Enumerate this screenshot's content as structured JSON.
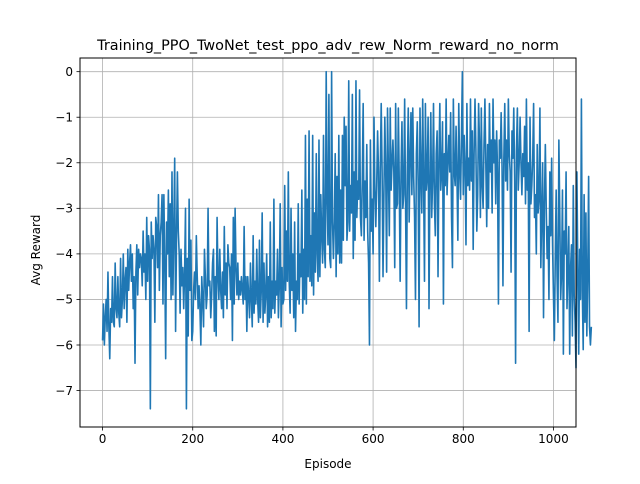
{
  "chart_data": {
    "type": "line",
    "title": "Training_PPO_TwoNet_test_ppo_adv_rew_Norm_reward_no_norm",
    "xlabel": "Episode",
    "ylabel": "Avg Reward",
    "xlim": [
      -50,
      1050
    ],
    "ylim": [
      -7.8,
      0.3
    ],
    "x_ticks": [
      0,
      200,
      400,
      600,
      800,
      1000
    ],
    "y_ticks": [
      0,
      -1,
      -2,
      -3,
      -4,
      -5,
      -6,
      -7
    ],
    "x_tick_labels": [
      "0",
      "200",
      "400",
      "600",
      "800",
      "1000"
    ],
    "y_tick_labels": [
      "0",
      "−1",
      "−2",
      "−3",
      "−4",
      "−5",
      "−6",
      "−7"
    ],
    "grid": true,
    "legend": "none",
    "series": [
      {
        "color": "#1f77b4",
        "x_start": 0,
        "x_step": 2,
        "values": [
          -5.9,
          -5.1,
          -6.0,
          -5.4,
          -5.0,
          -5.7,
          -4.4,
          -5.6,
          -6.3,
          -5.2,
          -5.5,
          -4.5,
          -5.5,
          -5.6,
          -4.2,
          -5.2,
          -5.4,
          -4.5,
          -5.3,
          -5.6,
          -4.1,
          -5.4,
          -5.0,
          -4.0,
          -5.2,
          -4.6,
          -4.3,
          -5.5,
          -3.9,
          -4.8,
          -4.2,
          -3.8,
          -4.6,
          -4.0,
          -5.2,
          -4.5,
          -6.4,
          -4.4,
          -3.8,
          -4.9,
          -3.9,
          -4.3,
          -4.0,
          -4.1,
          -4.7,
          -3.5,
          -4.4,
          -4.0,
          -5.0,
          -3.2,
          -4.6,
          -3.6,
          -3.9,
          -7.4,
          -3.3,
          -4.1,
          -3.6,
          -3.9,
          -5.5,
          -3.2,
          -3.4,
          -4.3,
          -2.7,
          -4.8,
          -3.6,
          -3.3,
          -2.7,
          -5.1,
          -2.7,
          -4.2,
          -6.3,
          -3.3,
          -4.0,
          -2.6,
          -4.5,
          -2.9,
          -5.0,
          -2.2,
          -4.9,
          -3.5,
          -1.9,
          -5.7,
          -3.7,
          -2.2,
          -3.5,
          -4.0,
          -5.3,
          -3.9,
          -4.7,
          -4.3,
          -5.2,
          -4.4,
          -3.0,
          -7.4,
          -4.1,
          -5.8,
          -2.8,
          -4.8,
          -3.7,
          -5.9,
          -5.7,
          -4.8,
          -4.4,
          -5.0,
          -3.6,
          -4.5,
          -5.2,
          -4.7,
          -5.2,
          -6.0,
          -4.5,
          -5.0,
          -5.6,
          -3.9,
          -4.5,
          -5.2,
          -4.9,
          -3.0,
          -4.7,
          -4.6,
          -5.4,
          -4.9,
          -4.2,
          -3.9,
          -5.7,
          -4.5,
          -5.8,
          -3.2,
          -4.5,
          -5.0,
          -3.9,
          -4.8,
          -5.2,
          -4.4,
          -5.4,
          -3.4,
          -4.9,
          -4.2,
          -5.2,
          -3.8,
          -4.2,
          -4.3,
          -5.0,
          -4.0,
          -5.9,
          -3.2,
          -5.1,
          -3.0,
          -4.3,
          -4.9,
          -4.2,
          -5.0,
          -4.6,
          -4.9,
          -4.5,
          -4.8,
          -5.1,
          -3.4,
          -5.0,
          -4.5,
          -5.7,
          -4.5,
          -4.9,
          -5.4,
          -4.2,
          -5.0,
          -5.6,
          -3.6,
          -5.3,
          -4.6,
          -5.1,
          -3.9,
          -5.0,
          -5.5,
          -3.7,
          -5.4,
          -4.8,
          -3.1,
          -5.5,
          -4.2,
          -5.3,
          -4.9,
          -4.0,
          -5.6,
          -4.5,
          -5.5,
          -3.3,
          -5.4,
          -4.6,
          -5.2,
          -2.8,
          -5.3,
          -4.6,
          -4.9,
          -3.9,
          -5.4,
          -4.7,
          -2.9,
          -5.6,
          -4.3,
          -5.1,
          -5.0,
          -2.5,
          -4.8,
          -3.5,
          -4.6,
          -2.2,
          -4.6,
          -5.3,
          -3.0,
          -4.8,
          -4.0,
          -5.4,
          -3.3,
          -5.7,
          -4.6,
          -5.0,
          -2.9,
          -5.1,
          -4.0,
          -4.5,
          -2.6,
          -5.3,
          -3.9,
          -5.0,
          -1.4,
          -5.1,
          -2.8,
          -4.5,
          -1.3,
          -4.6,
          -3.6,
          -4.7,
          -1.4,
          -4.9,
          -3.1,
          -4.4,
          -1.8,
          -4.0,
          -4.6,
          -1.5,
          -4.5,
          -2.7,
          -3.6,
          -4.2,
          -1.4,
          -3.9,
          -4.3,
          0.0,
          -2.8,
          -3.8,
          -0.5,
          -4.1,
          -4.3,
          0.0,
          -3.3,
          -4.1,
          -3.3,
          -1.8,
          -4.5,
          -2.3,
          -4.0,
          -1.4,
          -4.2,
          -2.6,
          -4.2,
          -1.4,
          -3.7,
          -1.0,
          -2.5,
          -1.2,
          -3.7,
          -3.3,
          -0.2,
          -3.5,
          -2.5,
          -3.1,
          -0.5,
          -4.1,
          -2.2,
          -3.7,
          -0.2,
          -3.2,
          -2.4,
          -2.8,
          -0.4,
          -3.2,
          -3.6,
          -2.4,
          -0.7,
          -3.7,
          -2.4,
          -3.2,
          -1.6,
          -3.5,
          -4.2,
          -6.0,
          -1.5,
          -3.5,
          -2.8,
          -4.0,
          -1.0,
          -2.6,
          -3.4,
          -2.5,
          -1.3,
          -2.2,
          -4.6,
          -2.1,
          -0.7,
          -2.2,
          -4.5,
          -2.7,
          -1.0,
          -2.2,
          -4.4,
          -0.8,
          -2.2,
          -3.6,
          -0.8,
          -2.6,
          -2.0,
          -1.5,
          -2.2,
          -4.3,
          -0.7,
          -3.0,
          -2.9,
          -0.8,
          -2.4,
          -4.6,
          -2.2,
          -1.1,
          -3.0,
          -2.7,
          -0.6,
          -2.9,
          -5.2,
          -2.1,
          -0.8,
          -3.3,
          -1.9,
          -0.9,
          -2.7,
          -0.8,
          -2.3,
          -3.2,
          -5.0,
          -1.8,
          -1.1,
          -2.5,
          -5.6,
          -0.8,
          -2.2,
          -3.1,
          -0.6,
          -2.4,
          -4.6,
          -0.7,
          -2.6,
          -2.3,
          -1.0,
          -5.2,
          -2.4,
          -0.9,
          -3.2,
          -2.4,
          -0.7,
          -2.9,
          -3.6,
          -1.8,
          -1.3,
          -4.5,
          -2.0,
          -0.7,
          -2.6,
          -2.2,
          -1.1,
          -5.1,
          -1.8,
          -2.5,
          -0.6,
          -2.7,
          -2.0,
          -1.4,
          -2.2,
          -0.9,
          -3.2,
          -4.3,
          -0.6,
          -2.2,
          -2.5,
          -1.2,
          -2.3,
          -3.7,
          -0.7,
          -2.2,
          -2.8,
          -1.4,
          0.0,
          -2.7,
          -1.4,
          -2.1,
          -3.8,
          -0.7,
          -2.5,
          -1.9,
          -2.6,
          -0.6,
          -2.4,
          -1.3,
          -3.9,
          -1.8,
          -0.6,
          -1.7,
          -3.5,
          -2.7,
          -0.7,
          -1.6,
          -3.2,
          -0.8,
          -2.5,
          -3.0,
          -1.6,
          -0.6,
          -2.0,
          -3.4,
          -1.6,
          -3.0,
          -0.7,
          -2.2,
          -1.5,
          -3.1,
          -0.6,
          -2.0,
          -1.5,
          -2.9,
          -1.3,
          -2.2,
          -5.1,
          -1.5,
          -1.9,
          -0.9,
          -2.1,
          -4.7,
          -1.9,
          -0.7,
          -2.4,
          -1.5,
          -2.6,
          -0.6,
          -1.8,
          -2.2,
          -4.4,
          -1.3,
          -1.9,
          -0.8,
          -2.4,
          -6.4,
          -1.7,
          -0.8,
          -2.6,
          -2.0,
          -1.0,
          -2.0,
          -2.7,
          -1.8,
          -2.3,
          -1.2,
          -2.9,
          -0.6,
          -2.6,
          -2.0,
          -5.7,
          -1.0,
          -2.9,
          -2.5,
          -1.9,
          -0.7,
          -3.2,
          -2.7,
          -4.0,
          -1.6,
          -3.1,
          -2.8,
          -0.8,
          -4.3,
          -3.1,
          -2.0,
          -5.4,
          -2.9,
          -1.6,
          -3.0,
          -4.1,
          -3.4,
          -5.0,
          -2.2,
          -3.6,
          -1.9,
          -3.8,
          -4.9,
          -5.9,
          -4.1,
          -2.6,
          -4.5,
          -5.5,
          -1.5,
          -3.1,
          -5.0,
          -4.4,
          -2.6,
          -6.2,
          -3.5,
          -4.0,
          -2.2,
          -5.2,
          -4.4,
          -3.4,
          -6.2,
          -4.3,
          -3.8,
          -5.8,
          -2.5,
          -4.9,
          -5.5,
          -6.5,
          -2.2,
          -4.3,
          -6.2,
          -3.9,
          -5.0,
          -0.6,
          -4.8,
          -6.1,
          -2.7,
          -5.5,
          -3.1,
          -5.8,
          -4.5,
          -2.3,
          -5.6,
          -6.0,
          -5.6
        ]
      }
    ]
  }
}
